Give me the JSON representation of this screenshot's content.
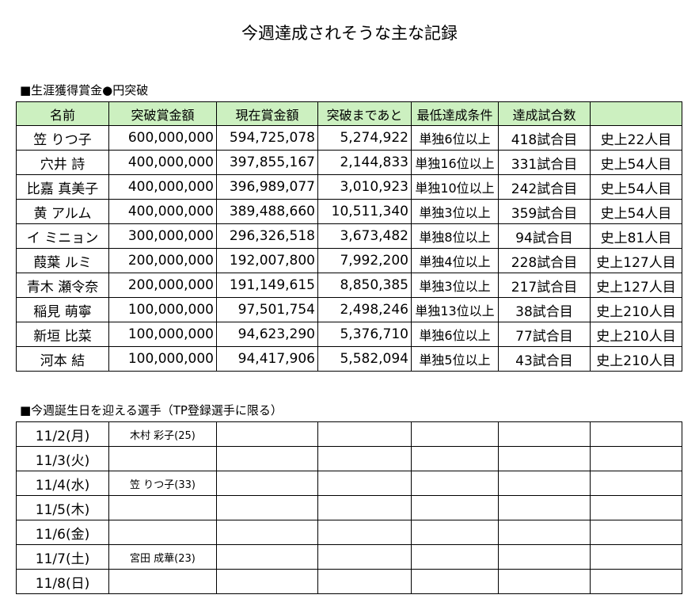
{
  "title": "今週達成されそうな主な記録",
  "section1": {
    "label": "■生涯獲得賞金●円突破"
  },
  "money_table": {
    "headers": [
      "名前",
      "突破賞金額",
      "現在賞金額",
      "突破まであと",
      "最低達成条件",
      "達成試合数",
      ""
    ],
    "rows": [
      {
        "name": "笠 りつ子",
        "threshold": "600,000,000",
        "current": "594,725,078",
        "remaining": "5,274,922",
        "condition": "単独6位以上",
        "games": "418試合目",
        "rank": "史上22人目"
      },
      {
        "name": "穴井 詩",
        "threshold": "400,000,000",
        "current": "397,855,167",
        "remaining": "2,144,833",
        "condition": "単独16位以上",
        "games": "331試合目",
        "rank": "史上54人目"
      },
      {
        "name": "比嘉 真美子",
        "threshold": "400,000,000",
        "current": "396,989,077",
        "remaining": "3,010,923",
        "condition": "単独10位以上",
        "games": "242試合目",
        "rank": "史上54人目"
      },
      {
        "name": "黄 アルム",
        "threshold": "400,000,000",
        "current": "389,488,660",
        "remaining": "10,511,340",
        "condition": "単独3位以上",
        "games": "359試合目",
        "rank": "史上54人目"
      },
      {
        "name": "イ ミニョン",
        "threshold": "300,000,000",
        "current": "296,326,518",
        "remaining": "3,673,482",
        "condition": "単独8位以上",
        "games": "94試合目",
        "rank": "史上81人目"
      },
      {
        "name": "葭葉 ルミ",
        "threshold": "200,000,000",
        "current": "192,007,800",
        "remaining": "7,992,200",
        "condition": "単独4位以上",
        "games": "228試合目",
        "rank": "史上127人目"
      },
      {
        "name": "青木 瀬令奈",
        "threshold": "200,000,000",
        "current": "191,149,615",
        "remaining": "8,850,385",
        "condition": "単独3位以上",
        "games": "217試合目",
        "rank": "史上127人目"
      },
      {
        "name": "稲見 萌寧",
        "threshold": "100,000,000",
        "current": "97,501,754",
        "remaining": "2,498,246",
        "condition": "単独13位以上",
        "games": "38試合目",
        "rank": "史上210人目"
      },
      {
        "name": "新垣 比菜",
        "threshold": "100,000,000",
        "current": "94,623,290",
        "remaining": "5,376,710",
        "condition": "単独6位以上",
        "games": "77試合目",
        "rank": "史上210人目"
      },
      {
        "name": "河本 結",
        "threshold": "100,000,000",
        "current": "94,417,906",
        "remaining": "5,582,094",
        "condition": "単独5位以上",
        "games": "43試合目",
        "rank": "史上210人目"
      }
    ]
  },
  "section2": {
    "label": "■今週誕生日を迎える選手（TP登録選手に限る）"
  },
  "birthday_table": {
    "rows": [
      {
        "date": "11/2(月)",
        "player": "木村 彩子(25)"
      },
      {
        "date": "11/3(火)",
        "player": ""
      },
      {
        "date": "11/4(水)",
        "player": "笠 りつ子(33)"
      },
      {
        "date": "11/5(木)",
        "player": ""
      },
      {
        "date": "11/6(金)",
        "player": ""
      },
      {
        "date": "11/7(土)",
        "player": "宮田 成華(23)"
      },
      {
        "date": "11/8(日)",
        "player": ""
      }
    ]
  }
}
